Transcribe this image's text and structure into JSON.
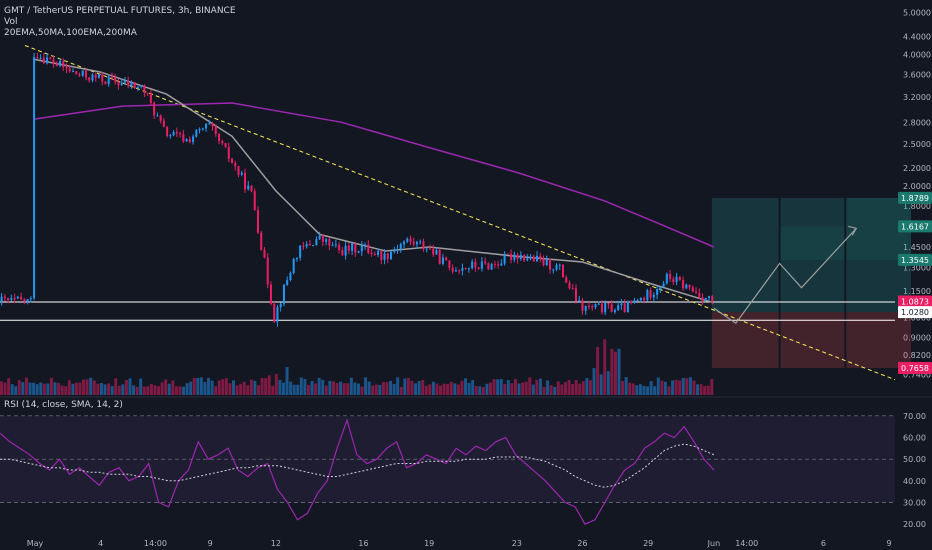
{
  "header": {
    "title": "GMT / TetherUS PERPETUAL FUTURES, 3h, BINANCE",
    "vol_label": "Vol",
    "ema_label": "20EMA,50MA,100EMA,200MA"
  },
  "rsi_header": "RSI (14, close, SMA, 14, 2)",
  "colors": {
    "background": "#131722",
    "up": "#2196f3",
    "down": "#e91e63",
    "ma_gray": "#9e9e9e",
    "ma_purple": "#9c27b0",
    "rsi_line": "#9c27b0",
    "trendline": "#ffee58",
    "level_line": "#ffffff",
    "profit_zone": "rgba(38,166,154,0.22)",
    "loss_zone": "rgba(239,83,80,0.22)",
    "projection": "#9e9e9e"
  },
  "chart_data": [
    {
      "type": "candlestick",
      "title": "GMT / TetherUS PERPETUAL FUTURES, 3h, BINANCE",
      "y_scale": "log",
      "y_ticks": [
        "5.0000",
        "4.4000",
        "4.0000",
        "3.6000",
        "3.2000",
        "2.8000",
        "2.5000",
        "2.2000",
        "2.0000",
        "1.8000",
        "1.6000",
        "1.4500",
        "1.3000",
        "1.1500",
        "1.0000",
        "0.9000",
        "0.8200",
        "0.7400"
      ],
      "x_ticks": [
        "May",
        "4",
        "14:00",
        "9",
        "12",
        "16",
        "19",
        "23",
        "26",
        "29",
        "Jun",
        "14:00",
        "6",
        "9"
      ],
      "ylim": [
        0.7,
        5.2
      ],
      "price_path": [
        {
          "x": "May 1",
          "y": 4.05
        },
        {
          "x": "May 3",
          "y": 3.6
        },
        {
          "x": "May 5",
          "y": 3.45
        },
        {
          "x": "May 6",
          "y": 3.35
        },
        {
          "x": "May 7",
          "y": 2.65
        },
        {
          "x": "May 8",
          "y": 2.55
        },
        {
          "x": "May 9",
          "y": 2.75
        },
        {
          "x": "May 10",
          "y": 2.3
        },
        {
          "x": "May 11",
          "y": 1.9
        },
        {
          "x": "May 12",
          "y": 1.0
        },
        {
          "x": "May 13",
          "y": 1.4
        },
        {
          "x": "May 14",
          "y": 1.52
        },
        {
          "x": "May 15",
          "y": 1.42
        },
        {
          "x": "May 16",
          "y": 1.45
        },
        {
          "x": "May 17",
          "y": 1.38
        },
        {
          "x": "May 18",
          "y": 1.5
        },
        {
          "x": "May 19",
          "y": 1.45
        },
        {
          "x": "May 20",
          "y": 1.3
        },
        {
          "x": "May 22",
          "y": 1.32
        },
        {
          "x": "May 23",
          "y": 1.4
        },
        {
          "x": "May 24",
          "y": 1.35
        },
        {
          "x": "May 25",
          "y": 1.3
        },
        {
          "x": "May 26",
          "y": 1.05
        },
        {
          "x": "May 27",
          "y": 1.05
        },
        {
          "x": "May 28",
          "y": 1.05
        },
        {
          "x": "May 29",
          "y": 1.12
        },
        {
          "x": "May 30",
          "y": 1.24
        },
        {
          "x": "May 31",
          "y": 1.16
        },
        {
          "x": "Jun 1",
          "y": 1.09
        }
      ],
      "ma_gray_path": [
        {
          "x": "May 1",
          "y": 3.9
        },
        {
          "x": "May 4",
          "y": 3.65
        },
        {
          "x": "May 7",
          "y": 3.25
        },
        {
          "x": "May 10",
          "y": 2.6
        },
        {
          "x": "May 12",
          "y": 1.95
        },
        {
          "x": "May 14",
          "y": 1.55
        },
        {
          "x": "May 17",
          "y": 1.42
        },
        {
          "x": "May 19",
          "y": 1.45
        },
        {
          "x": "May 23",
          "y": 1.38
        },
        {
          "x": "May 26",
          "y": 1.34
        },
        {
          "x": "May 29",
          "y": 1.2
        },
        {
          "x": "Jun 1",
          "y": 1.08
        }
      ],
      "ma_purple_path": [
        {
          "x": "May 1",
          "y": 2.85
        },
        {
          "x": "May 5",
          "y": 3.05
        },
        {
          "x": "May 10",
          "y": 3.1
        },
        {
          "x": "May 15",
          "y": 2.8
        },
        {
          "x": "May 19",
          "y": 2.45
        },
        {
          "x": "May 23",
          "y": 2.15
        },
        {
          "x": "May 27",
          "y": 1.85
        },
        {
          "x": "May 30",
          "y": 1.6
        },
        {
          "x": "Jun 1",
          "y": 1.45
        }
      ],
      "price_tags": [
        {
          "value": "1.8789",
          "kind": "target"
        },
        {
          "value": "1.6167",
          "kind": "target"
        },
        {
          "value": "1.3545",
          "kind": "target"
        },
        {
          "value": "1.0873",
          "kind": "current"
        },
        {
          "value": "1.0280",
          "kind": "level"
        },
        {
          "value": "0.7658",
          "kind": "stop"
        }
      ],
      "levels": [
        1.085,
        0.985
      ],
      "position": {
        "entry": 1.028,
        "stop": 0.7658,
        "targets": [
          1.3545,
          1.6167,
          1.8789
        ]
      }
    },
    {
      "type": "line",
      "title": "RSI (14, close, SMA, 14, 2)",
      "y_ticks": [
        "70.00",
        "60.00",
        "50.00",
        "40.00",
        "30.00",
        "20.00"
      ],
      "ylim": [
        15,
        75
      ],
      "bands": [
        70,
        50,
        30
      ],
      "rsi": [
        62,
        58,
        55,
        52,
        48,
        45,
        50,
        43,
        46,
        42,
        38,
        44,
        46,
        40,
        42,
        48,
        30,
        28,
        40,
        45,
        58,
        50,
        52,
        55,
        45,
        42,
        46,
        48,
        36,
        30,
        22,
        25,
        34,
        40,
        55,
        68,
        52,
        48,
        50,
        55,
        58,
        46,
        48,
        52,
        50,
        48,
        55,
        52,
        56,
        54,
        58,
        60,
        52,
        48,
        44,
        40,
        35,
        30,
        28,
        20,
        22,
        30,
        38,
        45,
        48,
        55,
        58,
        62,
        60,
        65,
        58,
        50,
        45
      ],
      "rsi_sma": [
        50,
        50,
        49,
        48,
        47,
        46,
        46,
        45,
        45,
        44,
        44,
        43,
        43,
        43,
        42,
        42,
        41,
        40,
        40,
        41,
        42,
        43,
        44,
        45,
        46,
        46,
        47,
        47,
        47,
        46,
        45,
        44,
        43,
        42,
        42,
        43,
        44,
        45,
        46,
        47,
        48,
        48,
        48,
        49,
        49,
        49,
        49,
        50,
        50,
        50,
        51,
        51,
        51,
        51,
        50,
        49,
        47,
        45,
        42,
        40,
        38,
        37,
        38,
        40,
        43,
        46,
        50,
        54,
        56,
        57,
        56,
        54,
        52
      ]
    }
  ]
}
